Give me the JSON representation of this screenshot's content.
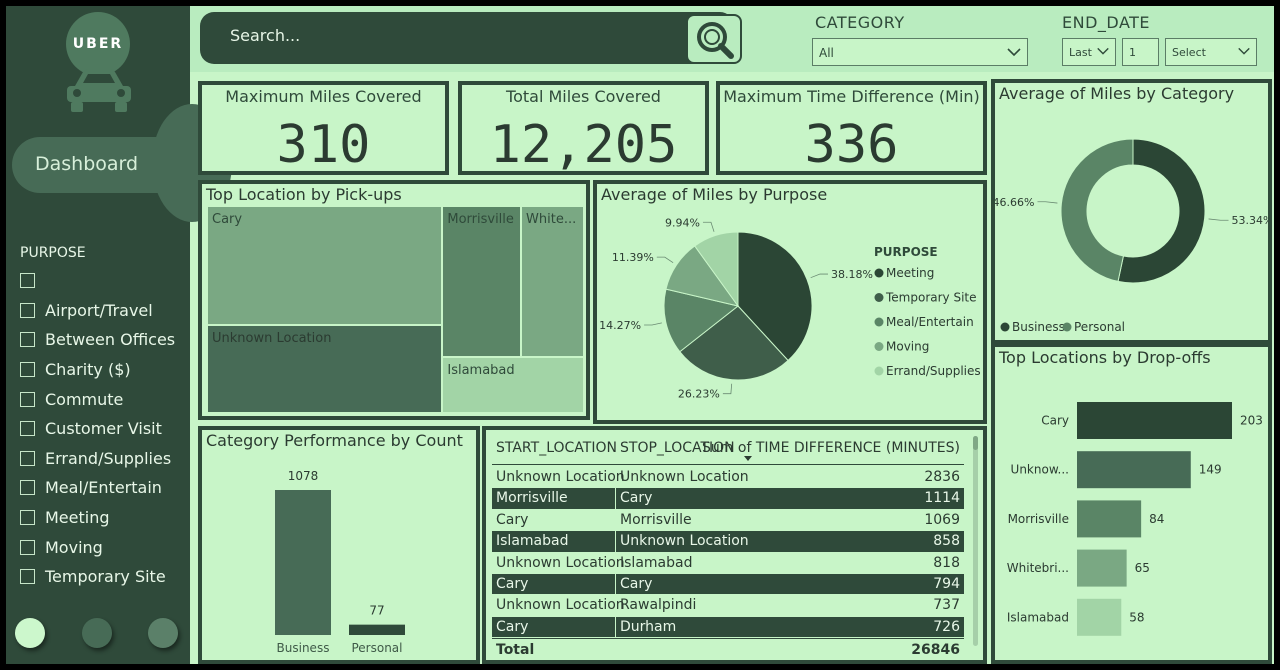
{
  "app": {
    "logo_text": "UBER"
  },
  "sidebar": {
    "dashboard_label": "Dashboard",
    "purpose_title": "PURPOSE",
    "purpose_items": [
      "",
      "Airport/Travel",
      "Between Offices",
      "Charity ($)",
      "Commute",
      "Customer Visit",
      "Errand/Supplies",
      "Meal/Entertain",
      "Meeting",
      "Moving",
      "Temporary Site"
    ],
    "nav_dots": [
      "#ccf7cc",
      "#476b56",
      "#5b8069"
    ]
  },
  "search": {
    "placeholder": "Search..."
  },
  "filters": {
    "category_label": "CATEGORY",
    "category_value": "All",
    "end_date_label": "END_DATE",
    "end_date_relative": "Last",
    "end_date_count": "1",
    "end_date_unit": "Select"
  },
  "kpis": [
    {
      "title": "Maximum Miles Covered",
      "value": "310"
    },
    {
      "title": "Total Miles Covered",
      "value": "12,205"
    },
    {
      "title": "Maximum Time Difference (Min)",
      "value": "336"
    }
  ],
  "colors": {
    "dark": "#2f4a3a",
    "bg": "#c8f5c8",
    "c1": "#2b4635",
    "c2": "#3f5e4a",
    "c3": "#5a8566",
    "c4": "#7aa883",
    "c5": "#a2d4a6"
  },
  "chart_data": [
    {
      "type": "treemap",
      "title": "Top Location by Pick-ups",
      "items": [
        {
          "label": "Cary",
          "color": "#7aa883",
          "value": 201
        },
        {
          "label": "Unknown Location",
          "color": "#476b56",
          "value": 148
        },
        {
          "label": "Morrisville",
          "color": "#5a8566",
          "value": 85
        },
        {
          "label": "White...",
          "color": "#7aa883",
          "value": 68
        },
        {
          "label": "Islamabad",
          "color": "#a2d4a6",
          "value": 57
        }
      ]
    },
    {
      "type": "pie",
      "title": "Average of Miles by Purpose",
      "legend_title": "PURPOSE",
      "series": [
        {
          "name": "Meeting",
          "value": 38.18,
          "label": "38.18%",
          "color": "#2b4635"
        },
        {
          "name": "Temporary Site",
          "value": 26.23,
          "label": "26.23%",
          "color": "#3f5e4a"
        },
        {
          "name": "Meal/Entertain",
          "value": 14.27,
          "label": "14.27%",
          "color": "#5a8566"
        },
        {
          "name": "Moving",
          "value": 11.39,
          "label": "11.39%",
          "color": "#7aa883"
        },
        {
          "name": "Errand/Supplies",
          "value": 9.94,
          "label": "9.94%",
          "color": "#a2d4a6"
        }
      ]
    },
    {
      "type": "donut",
      "title": "Average of Miles by Category",
      "series": [
        {
          "name": "Business",
          "value": 53.34,
          "label": "53.34%",
          "color": "#2b4635"
        },
        {
          "name": "Personal",
          "value": 46.66,
          "label": "46.66%",
          "color": "#5a8566"
        }
      ]
    },
    {
      "type": "bar",
      "orientation": "horizontal",
      "title": "Top Locations by Drop-offs",
      "categories": [
        "Cary",
        "Unknow...",
        "Morrisville",
        "Whitebri...",
        "Islamabad"
      ],
      "values": [
        203,
        149,
        84,
        65,
        58
      ],
      "colors": [
        "#2b4635",
        "#476b56",
        "#5a8566",
        "#7aa883",
        "#a2d4a6"
      ]
    },
    {
      "type": "bar",
      "title": "Category Performance by Count",
      "categories": [
        "Business",
        "Personal"
      ],
      "values": [
        1078,
        77
      ],
      "colors": [
        "#476b56",
        "#2f4a3a"
      ]
    },
    {
      "type": "table",
      "columns": [
        "START_LOCATION",
        "STOP_LOCATION",
        "Sum of TIME DIFFERENCE (MINUTES)"
      ],
      "rows": [
        [
          "Unknown Location",
          "Unknown Location",
          "2836"
        ],
        [
          "Morrisville",
          "Cary",
          "1114"
        ],
        [
          "Cary",
          "Morrisville",
          "1069"
        ],
        [
          "Islamabad",
          "Unknown Location",
          "858"
        ],
        [
          "Unknown Location",
          "Islamabad",
          "818"
        ],
        [
          "Cary",
          "Cary",
          "794"
        ],
        [
          "Unknown Location",
          "Rawalpindi",
          "737"
        ],
        [
          "Cary",
          "Durham",
          "726"
        ]
      ],
      "total_label": "Total",
      "total_value": "26846"
    }
  ]
}
